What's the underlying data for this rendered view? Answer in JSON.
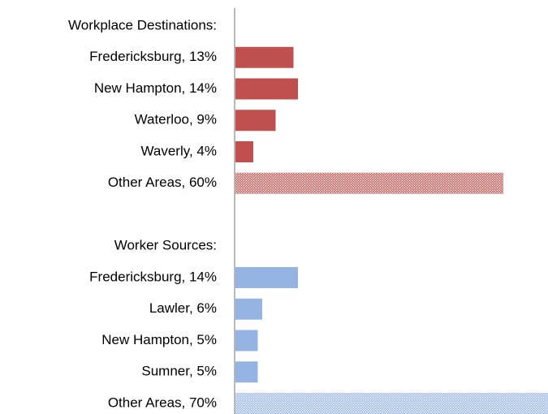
{
  "chart_data": {
    "type": "bar",
    "orientation": "horizontal",
    "categories": [
      "Workplace Destinations:",
      "Fredericksburg, 13%",
      "New Hampton, 14%",
      "Waterloo, 9%",
      "Waverly, 4%",
      "Other Areas, 60%",
      null,
      "Worker Sources:",
      "Fredericksburg, 14%",
      "Lawler, 6%",
      "New Hampton, 5%",
      "Sumner, 5%",
      "Other Areas, 70%"
    ],
    "values": [
      null,
      13,
      14,
      9,
      4,
      60,
      null,
      null,
      14,
      6,
      5,
      5,
      70
    ],
    "colors": [
      null,
      "#c0504d",
      "#c0504d",
      "#c0504d",
      "#c0504d",
      "#c0504d",
      null,
      null,
      "#95b3e3",
      "#95b3e3",
      "#95b3e3",
      "#95b3e3",
      "#95b3e3"
    ],
    "hatched": [
      false,
      false,
      false,
      false,
      false,
      true,
      false,
      false,
      false,
      false,
      false,
      false,
      true
    ],
    "xlim": [
      0,
      70
    ]
  }
}
